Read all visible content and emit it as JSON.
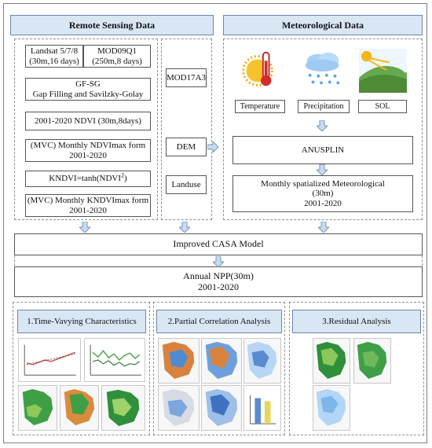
{
  "headers": {
    "remote_sensing": "Remote Sensing Data",
    "meteorological": "Meteorological Data"
  },
  "boxes": {
    "landsat_line1": "Landsat 5/7/8",
    "landsat_line2": "(30m,16 days)",
    "mod09q1_line1": "MOD09Q1",
    "mod09q1_line2": "(250m,8 days)",
    "gfsg_line1": "GF-SG",
    "gfsg_line2": "Gap Filling and Savilzky-Golay",
    "ndvi": "2001-2020 NDVI  (30m,8days)",
    "mvc_ndvi_line1": "(MVC) Monthly NDVImax form",
    "mvc_ndvi_line2": "2001-2020",
    "kndvi_prefix": "KNDVI=tanh(NDVI",
    "kndvi_sup": "2",
    "kndvi_suffix": ")",
    "mvc_kndvi_line1": "(MVC) Monthly KNDVImax form",
    "mvc_kndvi_line2": "2001-2020",
    "mod17a3": "MOD17A3",
    "dem": "DEM",
    "landuse": "Landuse",
    "anusplin": "ANUSPLIN",
    "spatialized_line1": "Monthly spatialized Meteorological",
    "spatialized_line2": "(30m)",
    "spatialized_line3": "2001-2020",
    "casa": "Improved CASA Model",
    "npp_line1": "Annual NPP(30m)",
    "npp_line2": "2001-2020"
  },
  "weather": {
    "temperature": "Temperature",
    "precipitation": "Precipitation",
    "sol": "SOL"
  },
  "panels": {
    "time_varying": "1.Time-Vavying Characteristics",
    "partial_correlation": "2.Partial Correlation Analysis",
    "residual": "3.Residual  Analysis"
  },
  "colors": {
    "header_fill": "#d9e6f4",
    "header_border": "#6b86a8",
    "arrow_fill": "#c9dbef",
    "arrow_border": "#7c95b6",
    "map_green": "#3f9f45",
    "map_blue": "#5a8bd1",
    "map_orange": "#d98b3e"
  }
}
